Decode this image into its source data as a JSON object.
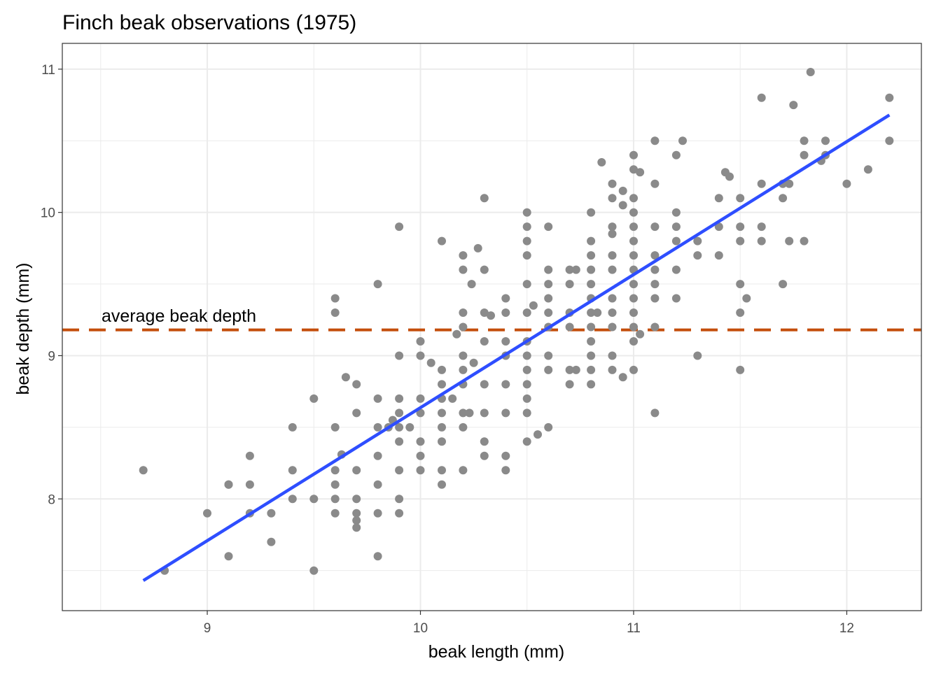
{
  "chart_data": {
    "type": "scatter",
    "title": "Finch beak observations (1975)",
    "xlabel": "beak length (mm)",
    "ylabel": "beak depth (mm)",
    "xlim": [
      8.32,
      12.35
    ],
    "ylim": [
      7.22,
      11.18
    ],
    "x_ticks": [
      9,
      10,
      11,
      12
    ],
    "y_ticks": [
      8,
      9,
      10,
      11
    ],
    "grid": true,
    "colors": {
      "points": "#8a8a8a",
      "fit_line": "#2e4eff",
      "reference_line": "#c44e0b",
      "grid": "#ebebeb",
      "panel_border": "#333333"
    },
    "reference_line": {
      "y": 9.18,
      "style": "dashed",
      "label": "average beak depth"
    },
    "fit_line": {
      "x": [
        8.7,
        12.2
      ],
      "y": [
        7.43,
        10.68
      ]
    },
    "points": [
      [
        8.7,
        8.2
      ],
      [
        8.8,
        7.5
      ],
      [
        9.0,
        7.9
      ],
      [
        9.1,
        7.6
      ],
      [
        9.1,
        8.1
      ],
      [
        9.1,
        8.1
      ],
      [
        9.2,
        7.9
      ],
      [
        9.2,
        8.1
      ],
      [
        9.2,
        8.3
      ],
      [
        9.3,
        7.7
      ],
      [
        9.3,
        7.9
      ],
      [
        9.4,
        8.0
      ],
      [
        9.4,
        8.2
      ],
      [
        9.4,
        8.5
      ],
      [
        9.5,
        7.5
      ],
      [
        9.5,
        8.0
      ],
      [
        9.5,
        8.7
      ],
      [
        9.6,
        7.9
      ],
      [
        9.6,
        8.0
      ],
      [
        9.6,
        8.1
      ],
      [
        9.6,
        8.2
      ],
      [
        9.6,
        8.5
      ],
      [
        9.6,
        9.3
      ],
      [
        9.6,
        9.4
      ],
      [
        9.63,
        8.31
      ],
      [
        9.65,
        8.85
      ],
      [
        9.7,
        7.8
      ],
      [
        9.7,
        7.85
      ],
      [
        9.7,
        7.9
      ],
      [
        9.7,
        8.0
      ],
      [
        9.7,
        8.2
      ],
      [
        9.7,
        8.6
      ],
      [
        9.7,
        8.8
      ],
      [
        9.8,
        7.6
      ],
      [
        9.8,
        7.9
      ],
      [
        9.8,
        8.1
      ],
      [
        9.8,
        8.3
      ],
      [
        9.8,
        8.5
      ],
      [
        9.8,
        8.7
      ],
      [
        9.8,
        9.5
      ],
      [
        9.85,
        8.5
      ],
      [
        9.87,
        8.55
      ],
      [
        9.9,
        7.9
      ],
      [
        9.9,
        8.0
      ],
      [
        9.9,
        8.2
      ],
      [
        9.9,
        8.4
      ],
      [
        9.9,
        8.5
      ],
      [
        9.9,
        8.6
      ],
      [
        9.9,
        8.7
      ],
      [
        9.9,
        9.0
      ],
      [
        9.9,
        9.9
      ],
      [
        9.95,
        8.5
      ],
      [
        10.0,
        8.2
      ],
      [
        10.0,
        8.3
      ],
      [
        10.0,
        8.4
      ],
      [
        10.0,
        8.6
      ],
      [
        10.0,
        8.7
      ],
      [
        10.0,
        9.0
      ],
      [
        10.0,
        9.1
      ],
      [
        10.05,
        8.95
      ],
      [
        10.1,
        8.1
      ],
      [
        10.1,
        8.2
      ],
      [
        10.1,
        8.4
      ],
      [
        10.1,
        8.5
      ],
      [
        10.1,
        8.6
      ],
      [
        10.1,
        8.7
      ],
      [
        10.1,
        8.8
      ],
      [
        10.1,
        8.9
      ],
      [
        10.1,
        9.8
      ],
      [
        10.15,
        8.7
      ],
      [
        10.17,
        9.15
      ],
      [
        10.2,
        8.2
      ],
      [
        10.2,
        8.5
      ],
      [
        10.2,
        8.6
      ],
      [
        10.2,
        8.8
      ],
      [
        10.2,
        8.9
      ],
      [
        10.2,
        9.0
      ],
      [
        10.2,
        9.2
      ],
      [
        10.2,
        9.3
      ],
      [
        10.2,
        9.6
      ],
      [
        10.2,
        9.7
      ],
      [
        10.23,
        8.6
      ],
      [
        10.24,
        9.5
      ],
      [
        10.25,
        8.95
      ],
      [
        10.27,
        9.75
      ],
      [
        10.3,
        8.3
      ],
      [
        10.3,
        8.4
      ],
      [
        10.3,
        8.6
      ],
      [
        10.3,
        8.8
      ],
      [
        10.3,
        9.1
      ],
      [
        10.3,
        9.3
      ],
      [
        10.3,
        9.6
      ],
      [
        10.3,
        10.1
      ],
      [
        10.33,
        9.28
      ],
      [
        10.4,
        8.2
      ],
      [
        10.4,
        8.3
      ],
      [
        10.4,
        8.6
      ],
      [
        10.4,
        8.8
      ],
      [
        10.4,
        9.0
      ],
      [
        10.4,
        9.1
      ],
      [
        10.4,
        9.3
      ],
      [
        10.4,
        9.4
      ],
      [
        10.5,
        8.4
      ],
      [
        10.5,
        8.6
      ],
      [
        10.5,
        8.7
      ],
      [
        10.5,
        8.8
      ],
      [
        10.5,
        8.9
      ],
      [
        10.5,
        9.0
      ],
      [
        10.5,
        9.1
      ],
      [
        10.5,
        9.3
      ],
      [
        10.5,
        9.5
      ],
      [
        10.5,
        9.7
      ],
      [
        10.5,
        9.8
      ],
      [
        10.5,
        9.9
      ],
      [
        10.5,
        10.0
      ],
      [
        10.53,
        9.35
      ],
      [
        10.55,
        8.45
      ],
      [
        10.6,
        8.5
      ],
      [
        10.6,
        8.9
      ],
      [
        10.6,
        9.0
      ],
      [
        10.6,
        9.2
      ],
      [
        10.6,
        9.3
      ],
      [
        10.6,
        9.4
      ],
      [
        10.6,
        9.5
      ],
      [
        10.6,
        9.6
      ],
      [
        10.6,
        9.9
      ],
      [
        10.7,
        8.8
      ],
      [
        10.7,
        8.9
      ],
      [
        10.7,
        9.2
      ],
      [
        10.7,
        9.3
      ],
      [
        10.7,
        9.5
      ],
      [
        10.7,
        9.6
      ],
      [
        10.73,
        8.9
      ],
      [
        10.73,
        9.6
      ],
      [
        10.8,
        8.8
      ],
      [
        10.8,
        8.9
      ],
      [
        10.8,
        9.0
      ],
      [
        10.8,
        9.1
      ],
      [
        10.8,
        9.2
      ],
      [
        10.8,
        9.3
      ],
      [
        10.8,
        9.4
      ],
      [
        10.8,
        9.5
      ],
      [
        10.8,
        9.6
      ],
      [
        10.8,
        9.7
      ],
      [
        10.8,
        9.8
      ],
      [
        10.8,
        10.0
      ],
      [
        10.83,
        9.3
      ],
      [
        10.85,
        10.35
      ],
      [
        10.9,
        8.9
      ],
      [
        10.9,
        9.0
      ],
      [
        10.9,
        9.2
      ],
      [
        10.9,
        9.3
      ],
      [
        10.9,
        9.4
      ],
      [
        10.9,
        9.6
      ],
      [
        10.9,
        9.7
      ],
      [
        10.9,
        9.85
      ],
      [
        10.9,
        9.9
      ],
      [
        10.9,
        10.1
      ],
      [
        10.9,
        10.2
      ],
      [
        10.95,
        8.85
      ],
      [
        10.95,
        10.05
      ],
      [
        10.95,
        10.15
      ],
      [
        11.0,
        8.9
      ],
      [
        11.0,
        9.1
      ],
      [
        11.0,
        9.2
      ],
      [
        11.0,
        9.3
      ],
      [
        11.0,
        9.4
      ],
      [
        11.0,
        9.5
      ],
      [
        11.0,
        9.6
      ],
      [
        11.0,
        9.7
      ],
      [
        11.0,
        9.8
      ],
      [
        11.0,
        9.9
      ],
      [
        11.0,
        10.0
      ],
      [
        11.0,
        10.1
      ],
      [
        11.0,
        10.3
      ],
      [
        11.0,
        10.4
      ],
      [
        11.03,
        9.15
      ],
      [
        11.03,
        10.28
      ],
      [
        11.1,
        8.6
      ],
      [
        11.1,
        9.2
      ],
      [
        11.1,
        9.4
      ],
      [
        11.1,
        9.5
      ],
      [
        11.1,
        9.6
      ],
      [
        11.1,
        9.7
      ],
      [
        11.1,
        9.9
      ],
      [
        11.1,
        10.2
      ],
      [
        11.1,
        10.5
      ],
      [
        11.2,
        9.4
      ],
      [
        11.2,
        9.6
      ],
      [
        11.2,
        9.8
      ],
      [
        11.2,
        9.9
      ],
      [
        11.2,
        10.0
      ],
      [
        11.2,
        10.4
      ],
      [
        11.23,
        10.5
      ],
      [
        11.3,
        9.0
      ],
      [
        11.3,
        9.7
      ],
      [
        11.3,
        9.8
      ],
      [
        11.4,
        9.7
      ],
      [
        11.4,
        9.9
      ],
      [
        11.4,
        10.1
      ],
      [
        11.43,
        10.28
      ],
      [
        11.45,
        10.25
      ],
      [
        11.5,
        8.9
      ],
      [
        11.5,
        9.3
      ],
      [
        11.5,
        9.5
      ],
      [
        11.5,
        9.8
      ],
      [
        11.5,
        9.9
      ],
      [
        11.5,
        10.1
      ],
      [
        11.53,
        9.4
      ],
      [
        11.6,
        9.8
      ],
      [
        11.6,
        9.9
      ],
      [
        11.6,
        10.2
      ],
      [
        11.6,
        10.8
      ],
      [
        11.7,
        9.5
      ],
      [
        11.7,
        10.1
      ],
      [
        11.7,
        10.2
      ],
      [
        11.73,
        9.8
      ],
      [
        11.73,
        10.2
      ],
      [
        11.75,
        10.75
      ],
      [
        11.8,
        9.8
      ],
      [
        11.8,
        10.4
      ],
      [
        11.8,
        10.5
      ],
      [
        11.83,
        10.98
      ],
      [
        11.88,
        10.36
      ],
      [
        11.9,
        10.4
      ],
      [
        11.9,
        10.5
      ],
      [
        12.0,
        10.2
      ],
      [
        12.1,
        10.3
      ],
      [
        12.2,
        10.5
      ],
      [
        12.2,
        10.8
      ]
    ]
  }
}
